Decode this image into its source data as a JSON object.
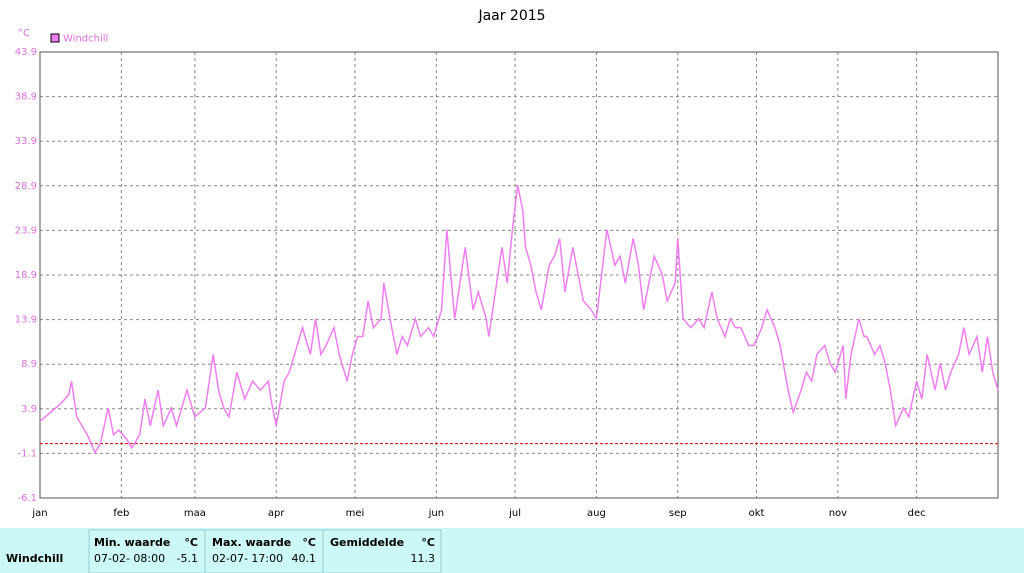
{
  "chart_data": {
    "type": "line",
    "title": "Jaar 2015",
    "unit_label": "°C",
    "x": [
      0,
      4,
      8,
      11,
      12,
      14,
      18,
      21,
      23,
      26,
      28,
      30,
      33,
      35,
      38,
      40,
      42,
      45,
      47,
      50,
      52,
      54,
      56,
      59,
      63,
      66,
      68,
      70,
      72,
      75,
      78,
      81,
      84,
      87,
      88,
      90,
      93,
      95,
      98,
      100,
      103,
      105,
      107,
      109,
      112,
      114,
      117,
      119,
      121,
      123,
      125,
      127,
      130,
      131,
      134,
      136,
      138,
      140,
      143,
      145,
      148,
      150,
      153,
      155,
      158,
      160,
      162,
      165,
      167,
      170,
      171,
      174,
      176,
      178,
      180,
      182,
      184,
      185,
      187,
      189,
      191,
      194,
      196,
      198,
      200,
      203,
      205,
      207,
      210,
      212,
      214,
      216,
      219,
      221,
      223,
      226,
      228,
      230,
      232,
      234,
      237,
      239,
      242,
      243,
      245,
      248,
      251,
      253,
      256,
      258,
      261,
      263,
      265,
      267,
      270,
      272,
      275,
      277,
      280,
      282,
      285,
      287,
      290,
      292,
      294,
      296,
      299,
      301,
      303,
      306,
      307,
      309,
      312,
      314,
      315,
      318,
      320,
      322,
      324,
      326,
      329,
      331,
      334,
      336,
      338,
      341,
      343,
      345,
      347,
      350,
      352,
      354,
      357,
      359,
      361,
      363,
      365
    ],
    "series": [
      {
        "name": "Windchill",
        "color": "#f07ef0",
        "values": [
          2.5,
          3.5,
          4.5,
          5.5,
          7,
          3,
          1,
          -1,
          0,
          4,
          1,
          1.5,
          0.5,
          -0.5,
          1,
          5,
          2,
          6,
          2,
          4,
          2,
          4,
          6,
          3,
          4,
          10,
          6,
          4,
          3,
          8,
          5,
          7,
          6,
          7,
          5,
          2,
          7,
          8,
          11,
          13,
          10,
          14,
          10,
          11,
          13,
          10,
          7,
          10,
          12,
          12,
          16,
          13,
          14,
          18,
          13,
          10,
          12,
          11,
          14,
          12,
          13,
          12,
          15,
          24,
          14,
          18,
          22,
          15,
          17,
          14,
          12,
          18,
          22,
          18,
          24,
          29,
          26,
          22,
          20,
          17,
          15,
          20,
          21,
          23,
          17,
          22,
          19,
          16,
          15,
          14,
          19,
          24,
          20,
          21,
          18,
          23,
          20,
          15,
          18,
          21,
          19,
          16,
          18,
          23,
          14,
          13,
          14,
          13,
          17,
          14,
          12,
          14,
          13,
          13,
          11,
          11,
          13,
          15,
          13,
          11,
          6,
          3.5,
          6,
          8,
          7,
          10,
          11,
          9,
          8,
          11,
          5,
          10,
          14,
          12,
          12,
          10,
          11,
          9,
          6,
          2,
          4,
          3,
          7,
          5,
          10,
          6,
          9,
          6,
          8,
          10,
          13,
          10,
          12,
          8,
          12,
          8,
          6
        ]
      }
    ],
    "xlim": [
      0,
      365
    ],
    "xticks": [
      {
        "value": 0,
        "label": "jan"
      },
      {
        "value": 31,
        "label": "feb"
      },
      {
        "value": 59,
        "label": "maa"
      },
      {
        "value": 90,
        "label": "apr"
      },
      {
        "value": 120,
        "label": "mei"
      },
      {
        "value": 151,
        "label": "jun"
      },
      {
        "value": 181,
        "label": "jul"
      },
      {
        "value": 212,
        "label": "aug"
      },
      {
        "value": 243,
        "label": "sep"
      },
      {
        "value": 273,
        "label": "okt"
      },
      {
        "value": 304,
        "label": "nov"
      },
      {
        "value": 334,
        "label": "dec"
      }
    ],
    "ylim": [
      -6.1,
      43.9
    ],
    "yticks": [
      -6.1,
      -1.1,
      3.9,
      8.9,
      13.9,
      18.9,
      23.9,
      28.9,
      33.9,
      38.9,
      43.9
    ],
    "grid": true,
    "hline": {
      "value": 0,
      "color": "#e00000"
    }
  },
  "table": {
    "row_label": "Windchill",
    "columns": [
      {
        "header": "Min. waarde",
        "unit": "°C",
        "time": "07-02- 08:00",
        "value": -5.1
      },
      {
        "header": "Max. waarde",
        "unit": "°C",
        "time": "02-07- 17:00",
        "value": 40.1
      },
      {
        "header": "Gemiddelde",
        "unit": "°C",
        "value": 11.3
      }
    ]
  }
}
